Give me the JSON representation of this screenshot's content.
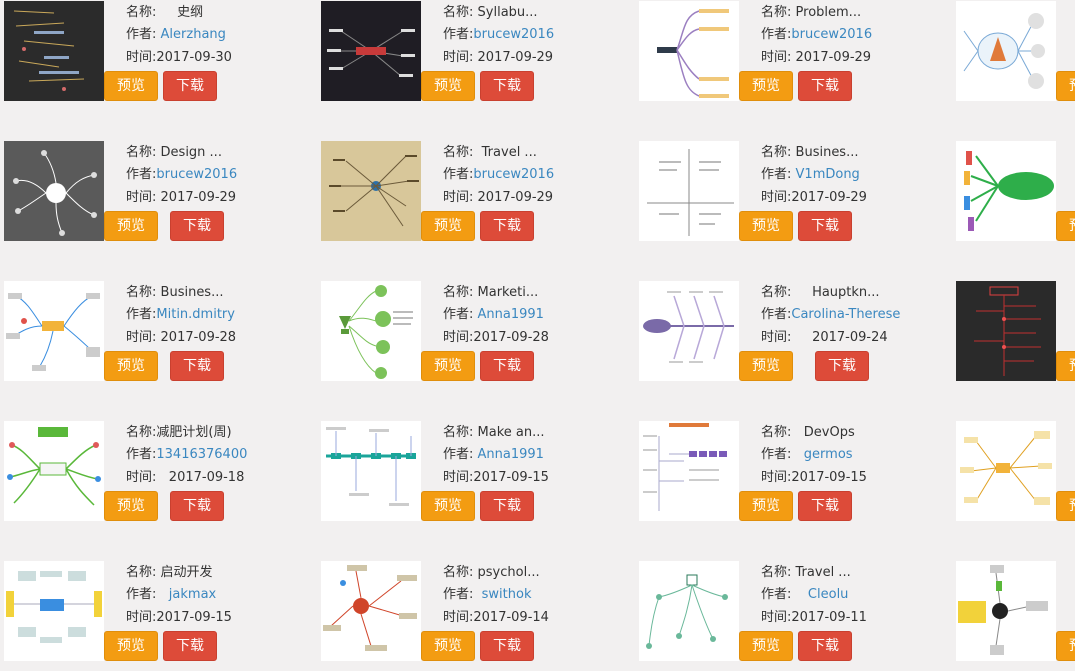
{
  "labels": {
    "name": "名称:",
    "author": "作者:",
    "time": "时间:",
    "preview": "预览",
    "download": "下载"
  },
  "colors": {
    "preview": "#f39c12",
    "download": "#dd4b39",
    "author_link": "#3a87c0"
  },
  "items": [
    {
      "name": "史纲",
      "author": "Alerzhang",
      "time": "2017-09-30"
    },
    {
      "name": "Syllabu...",
      "author": "brucew2016",
      "time": "2017-09-29"
    },
    {
      "name": "Problem...",
      "author": "brucew2016",
      "time": "2017-09-29"
    },
    {
      "name": "Design ...",
      "author": "brucew2016",
      "time": "2017-09-29"
    },
    {
      "name": "Travel ...",
      "author": "brucew2016",
      "time": "2017-09-29"
    },
    {
      "name": "Busines...",
      "author": "V1mDong",
      "time": "2017-09-29"
    },
    {
      "name": "Busines...",
      "author": "Mitin.dmitry",
      "time": "2017-09-28"
    },
    {
      "name": "Marketi...",
      "author": "Anna1991",
      "time": "2017-09-28"
    },
    {
      "name": "Hauptkn...",
      "author": "Carolina-Therese",
      "time": "2017-09-24"
    },
    {
      "name": "减肥计划(周)",
      "author": "13416376400",
      "time": "2017-09-18"
    },
    {
      "name": "Make an...",
      "author": "Anna1991",
      "time": "2017-09-15"
    },
    {
      "name": "DevOps",
      "author": "germos",
      "time": "2017-09-15"
    },
    {
      "name": "启动开发",
      "author": "jakmax",
      "time": "2017-09-15"
    },
    {
      "name": "psychol...",
      "author": "swithok",
      "time": "2017-09-14"
    },
    {
      "name": "Travel ...",
      "author": "Cleolu",
      "time": "2017-09-11"
    }
  ]
}
